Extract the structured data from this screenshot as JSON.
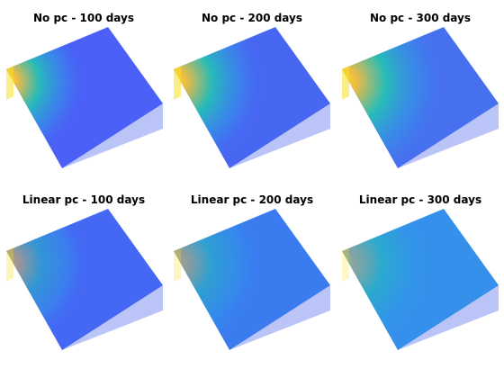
{
  "figure": {
    "panels": [
      {
        "title": "No pc - 100 days",
        "hot_strength": 1.0,
        "spread": 0.55,
        "base_color": "#4a60f6"
      },
      {
        "title": "No pc - 200 days",
        "hot_strength": 1.0,
        "spread": 0.75,
        "base_color": "#4766f2"
      },
      {
        "title": "No pc - 300 days",
        "hot_strength": 1.0,
        "spread": 0.95,
        "base_color": "#4770ef"
      },
      {
        "title": "Linear pc - 100 days",
        "hot_strength": 0.55,
        "spread": 0.6,
        "base_color": "#4468f4"
      },
      {
        "title": "Linear pc - 200 days",
        "hot_strength": 0.5,
        "spread": 0.7,
        "base_color": "#3a7cf0"
      },
      {
        "title": "Linear pc - 300 days",
        "hot_strength": 0.45,
        "spread": 0.8,
        "base_color": "#3490ea"
      }
    ],
    "colors": {
      "hot": "#f9e022",
      "warm": "#f6bf3c",
      "mid": "#23c4b2",
      "cool": "#2f9ae8",
      "side_shade": "#3d55e8"
    }
  }
}
